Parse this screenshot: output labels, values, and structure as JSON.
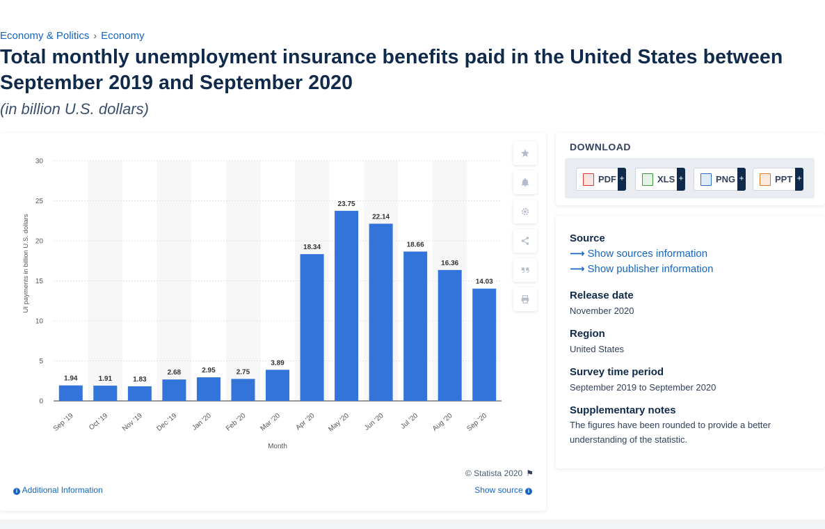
{
  "breadcrumb": {
    "items": [
      "Economy & Politics",
      "Economy"
    ],
    "separator": "›"
  },
  "title": "Total monthly unemployment insurance benefits paid in the United States between September 2019 and September 2020",
  "subtitle": "(in billion U.S. dollars)",
  "colors": {
    "bar": "#3274d9",
    "band": "#f7f7f7",
    "link": "#1565c0",
    "heading": "#0f2a4a"
  },
  "tools": {
    "icons": [
      "star-icon",
      "bell-icon",
      "gear-icon",
      "share-icon",
      "quote-icon",
      "print-icon"
    ]
  },
  "chart_data": {
    "type": "bar",
    "categories": [
      "Sep '19",
      "Oct '19",
      "Nov '19",
      "Dec '19",
      "Jan '20",
      "Feb '20",
      "Mar '20",
      "Apr '20",
      "May '20",
      "Jun '20",
      "Jul '20",
      "Aug '20",
      "Sep '20"
    ],
    "values": [
      1.94,
      1.91,
      1.83,
      2.68,
      2.95,
      2.75,
      3.89,
      18.34,
      23.75,
      22.14,
      18.66,
      16.36,
      14.03
    ],
    "value_labels": [
      "1.94",
      "1.91",
      "1.83",
      "2.68",
      "2.95",
      "2.75",
      "3.89",
      "18.34",
      "23.75",
      "22.14",
      "18.66",
      "16.36",
      "14.03"
    ],
    "xlabel": "Month",
    "ylabel": "UI payments in billion U.S. dollars",
    "ylim": [
      0,
      30
    ],
    "yticks": [
      0,
      5,
      10,
      15,
      20,
      25,
      30
    ],
    "grid": true,
    "alternating_bands": true
  },
  "chart_footer": {
    "copyright": "© Statista 2020",
    "additional_info": "Additional Information",
    "show_source": "Show source"
  },
  "download": {
    "title": "DOWNLOAD",
    "buttons": [
      {
        "label": "PDF",
        "icon": "pdf-icon",
        "color": "#d9372b"
      },
      {
        "label": "XLS",
        "icon": "xls-icon",
        "color": "#3a9a3a"
      },
      {
        "label": "PNG",
        "icon": "png-icon",
        "color": "#2f6fc0"
      },
      {
        "label": "PPT",
        "icon": "ppt-icon",
        "color": "#e07a26"
      }
    ],
    "plus": "+"
  },
  "info": {
    "source_heading": "Source",
    "show_sources": "Show sources information",
    "show_publisher": "Show publisher information",
    "release_date_heading": "Release date",
    "release_date": "November 2020",
    "region_heading": "Region",
    "region": "United States",
    "survey_period_heading": "Survey time period",
    "survey_period": "September 2019 to September 2020",
    "notes_heading": "Supplementary notes",
    "notes": "The figures have been rounded to provide a better understanding of the statistic."
  }
}
